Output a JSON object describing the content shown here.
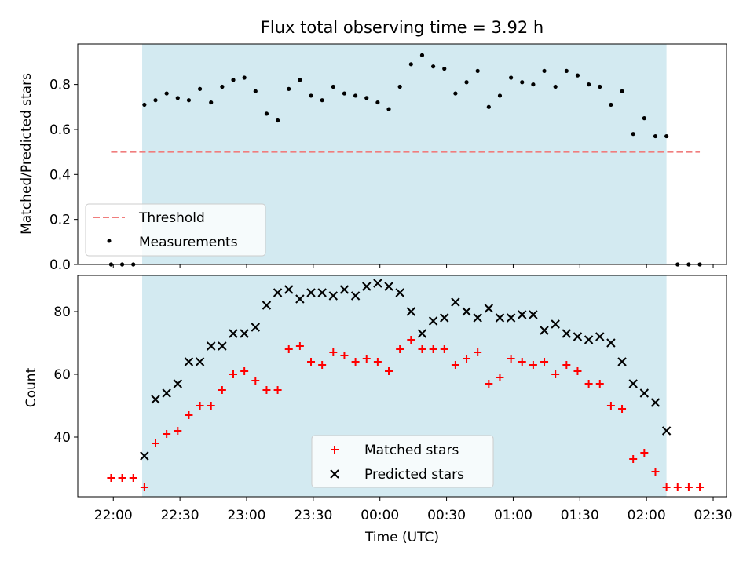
{
  "chart_data": [
    {
      "type": "scatter",
      "title": "Flux total observing time = 3.92 h",
      "xlabel": "",
      "ylabel": "Matched/Predicted stars",
      "ylim": [
        0,
        0.98
      ],
      "yticks": [
        0.0,
        0.2,
        0.4,
        0.6,
        0.8
      ],
      "ytick_labels": [
        "0.0",
        "0.2",
        "0.4",
        "0.6",
        "0.8"
      ],
      "grid": false,
      "legend_position": "bottom-left",
      "shaded_window": {
        "start": "22:13",
        "end": "02:09",
        "color": "#d3eaf1"
      },
      "threshold": {
        "name": "Threshold",
        "value": 0.5,
        "x_start": "21:59",
        "x_end": "02:24",
        "color": "#f07d7d"
      },
      "series": [
        {
          "name": "Measurements",
          "color": "#000000",
          "x": [
            "21:59",
            "22:04",
            "22:09",
            "22:14",
            "22:19",
            "22:24",
            "22:29",
            "22:34",
            "22:39",
            "22:44",
            "22:49",
            "22:54",
            "22:59",
            "23:04",
            "23:09",
            "23:14",
            "23:19",
            "23:24",
            "23:29",
            "23:34",
            "23:39",
            "23:44",
            "23:49",
            "23:54",
            "23:59",
            "00:04",
            "00:09",
            "00:14",
            "00:19",
            "00:24",
            "00:29",
            "00:34",
            "00:39",
            "00:44",
            "00:49",
            "00:54",
            "00:59",
            "01:04",
            "01:09",
            "01:14",
            "01:19",
            "01:24",
            "01:29",
            "01:34",
            "01:39",
            "01:44",
            "01:49",
            "01:54",
            "01:59",
            "02:04",
            "02:09",
            "02:14",
            "02:19",
            "02:24"
          ],
          "y": [
            0.0,
            0.0,
            0.0,
            0.71,
            0.73,
            0.76,
            0.74,
            0.73,
            0.78,
            0.72,
            0.79,
            0.82,
            0.83,
            0.77,
            0.67,
            0.64,
            0.78,
            0.82,
            0.75,
            0.73,
            0.79,
            0.76,
            0.75,
            0.74,
            0.72,
            0.69,
            0.79,
            0.89,
            0.93,
            0.88,
            0.87,
            0.76,
            0.81,
            0.86,
            0.7,
            0.75,
            0.83,
            0.81,
            0.8,
            0.86,
            0.79,
            0.86,
            0.84,
            0.8,
            0.79,
            0.71,
            0.77,
            0.58,
            0.65,
            0.57,
            0.57,
            0.0,
            0.0,
            0.0
          ]
        }
      ]
    },
    {
      "type": "scatter",
      "title": "",
      "xlabel": "Time (UTC)",
      "ylabel": "Count",
      "ylim": [
        21,
        91.5
      ],
      "yticks": [
        40,
        60,
        80
      ],
      "ytick_labels": [
        "40",
        "60",
        "80"
      ],
      "xlim": [
        "21:44",
        "02:36"
      ],
      "xticks": [
        "22:00",
        "22:30",
        "23:00",
        "23:30",
        "00:00",
        "00:30",
        "01:00",
        "01:30",
        "02:00",
        "02:30"
      ],
      "xtick_labels": [
        "22:00",
        "22:30",
        "23:00",
        "23:30",
        "00:00",
        "00:30",
        "01:00",
        "01:30",
        "02:00",
        "02:30"
      ],
      "grid": false,
      "legend_position": "bottom-center",
      "shaded_window": {
        "start": "22:13",
        "end": "02:09",
        "color": "#d3eaf1"
      },
      "series": [
        {
          "name": "Matched stars",
          "marker": "+",
          "color": "#ff0000",
          "x": [
            "21:59",
            "22:04",
            "22:09",
            "22:14",
            "22:19",
            "22:24",
            "22:29",
            "22:34",
            "22:39",
            "22:44",
            "22:49",
            "22:54",
            "22:59",
            "23:04",
            "23:09",
            "23:14",
            "23:19",
            "23:24",
            "23:29",
            "23:34",
            "23:39",
            "23:44",
            "23:49",
            "23:54",
            "23:59",
            "00:04",
            "00:09",
            "00:14",
            "00:19",
            "00:24",
            "00:29",
            "00:34",
            "00:39",
            "00:44",
            "00:49",
            "00:54",
            "00:59",
            "01:04",
            "01:09",
            "01:14",
            "01:19",
            "01:24",
            "01:29",
            "01:34",
            "01:39",
            "01:44",
            "01:49",
            "01:54",
            "01:59",
            "02:04",
            "02:09",
            "02:14",
            "02:19",
            "02:24"
          ],
          "y": [
            27,
            27,
            27,
            24,
            38,
            41,
            42,
            47,
            50,
            50,
            55,
            60,
            61,
            58,
            55,
            55,
            68,
            69,
            64,
            63,
            67,
            66,
            64,
            65,
            64,
            61,
            68,
            71,
            68,
            68,
            68,
            63,
            65,
            67,
            57,
            59,
            65,
            64,
            63,
            64,
            60,
            63,
            61,
            57,
            57,
            50,
            49,
            33,
            35,
            29,
            24,
            24,
            24,
            24
          ]
        },
        {
          "name": "Predicted stars",
          "marker": "x",
          "color": "#000000",
          "x": [
            "22:14",
            "22:19",
            "22:24",
            "22:29",
            "22:34",
            "22:39",
            "22:44",
            "22:49",
            "22:54",
            "22:59",
            "23:04",
            "23:09",
            "23:14",
            "23:19",
            "23:24",
            "23:29",
            "23:34",
            "23:39",
            "23:44",
            "23:49",
            "23:54",
            "23:59",
            "00:04",
            "00:09",
            "00:14",
            "00:19",
            "00:24",
            "00:29",
            "00:34",
            "00:39",
            "00:44",
            "00:49",
            "00:54",
            "00:59",
            "01:04",
            "01:09",
            "01:14",
            "01:19",
            "01:24",
            "01:29",
            "01:34",
            "01:39",
            "01:44",
            "01:49",
            "01:54",
            "01:59",
            "02:04",
            "02:09"
          ],
          "y": [
            34,
            52,
            54,
            57,
            64,
            64,
            69,
            69,
            73,
            73,
            75,
            82,
            86,
            87,
            84,
            86,
            86,
            85,
            87,
            85,
            88,
            89,
            88,
            86,
            80,
            73,
            77,
            78,
            83,
            80,
            78,
            81,
            78,
            78,
            79,
            79,
            74,
            76,
            73,
            72,
            71,
            72,
            70,
            64,
            57,
            54,
            51,
            42
          ]
        }
      ]
    }
  ]
}
